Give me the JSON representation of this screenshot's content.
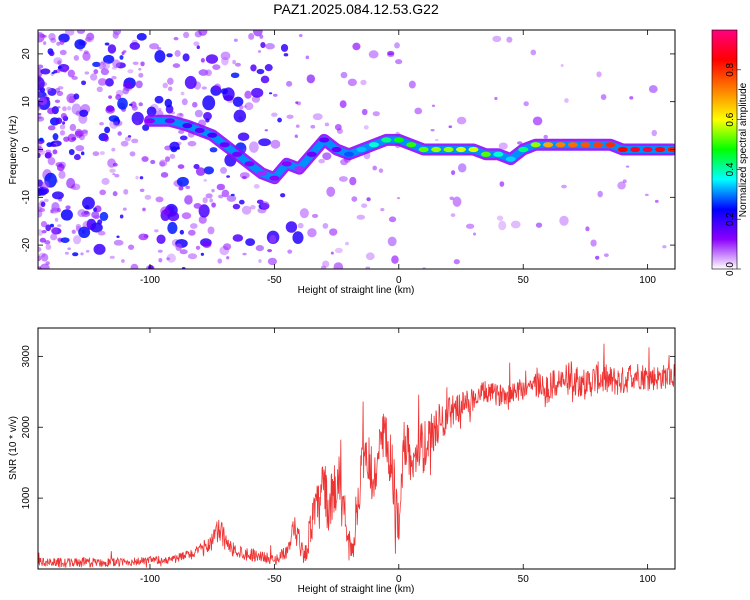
{
  "title": "PAZ1.2025.084.12.53.G22",
  "chart_data": [
    {
      "type": "heatmap",
      "xlabel": "Height of straight line (km)",
      "ylabel": "Frequency (Hz)",
      "xlim": [
        -145,
        111
      ],
      "ylim": [
        -25,
        25
      ],
      "xticks": [
        -100,
        -50,
        0,
        50,
        100
      ],
      "yticks": [
        -20,
        -10,
        0,
        10,
        20
      ],
      "colorbar": {
        "label": "Normalized spectral amplitude",
        "range": [
          0,
          0.96
        ],
        "ticks": [
          0.0,
          0.2,
          0.4,
          0.6,
          0.8
        ],
        "colormap": [
          "#ffffff",
          "#8b00ff",
          "#0000ff",
          "#00ffff",
          "#00ff00",
          "#ffff00",
          "#ff8000",
          "#ff0000",
          "#ff0080"
        ]
      },
      "ridge": {
        "x": [
          -100,
          -92,
          -85,
          -80,
          -75,
          -70,
          -65,
          -60,
          -55,
          -50,
          -45,
          -40,
          -35,
          -30,
          -25,
          -20,
          -15,
          -10,
          -5,
          0,
          5,
          10,
          15,
          20,
          25,
          30,
          35,
          40,
          45,
          50,
          55,
          60,
          65,
          70,
          75,
          80,
          85,
          90,
          95,
          100,
          105,
          110
        ],
        "y": [
          6,
          6,
          5,
          4,
          3,
          1,
          -1,
          -3,
          -5,
          -6,
          -3,
          -4,
          -1,
          2,
          0,
          -1,
          0,
          1,
          2,
          2,
          1,
          0,
          0,
          0,
          0,
          0,
          -1,
          -1,
          -2,
          0,
          1,
          1,
          1,
          1,
          1,
          1,
          1,
          0,
          0,
          0,
          0,
          0
        ],
        "amplitude": [
          0.12,
          0.14,
          0.18,
          0.16,
          0.18,
          0.15,
          0.14,
          0.13,
          0.1,
          0.12,
          0.12,
          0.1,
          0.15,
          0.16,
          0.15,
          0.28,
          0.33,
          0.38,
          0.42,
          0.48,
          0.5,
          0.52,
          0.55,
          0.55,
          0.58,
          0.58,
          0.52,
          0.38,
          0.34,
          0.42,
          0.55,
          0.68,
          0.72,
          0.74,
          0.76,
          0.78,
          0.8,
          0.84,
          0.88,
          0.9,
          0.86,
          0.82
        ]
      }
    },
    {
      "type": "line",
      "xlabel": "Height of straight line (km)",
      "ylabel": "SNR (10 * v/v)",
      "xlim": [
        -145,
        111
      ],
      "ylim": [
        0,
        3400
      ],
      "xticks": [
        -100,
        -50,
        0,
        50,
        100
      ],
      "yticks": [
        1000,
        2000,
        3000
      ],
      "color": "#ee3333",
      "series": [
        {
          "x": [
            -145,
            -130,
            -110,
            -90,
            -80,
            -75,
            -72,
            -68,
            -62,
            -55,
            -50,
            -45,
            -42,
            -40,
            -38,
            -35,
            -32,
            -30,
            -28,
            -25,
            -22,
            -20,
            -18,
            -15,
            -12,
            -10,
            -8,
            -5,
            -3,
            0,
            2,
            5,
            10,
            15,
            20,
            25,
            30,
            35,
            40,
            45,
            50,
            55,
            60,
            65,
            70,
            75,
            80,
            85,
            90,
            95,
            100,
            105,
            111
          ],
          "y": [
            100,
            90,
            95,
            140,
            250,
            400,
            550,
            300,
            220,
            180,
            120,
            250,
            500,
            400,
            150,
            650,
            900,
            1200,
            800,
            1300,
            900,
            400,
            300,
            1400,
            1500,
            1200,
            1700,
            1800,
            1400,
            650,
            1800,
            1600,
            1700,
            2000,
            2200,
            2300,
            2400,
            2500,
            2450,
            2500,
            2550,
            2600,
            2550,
            2650,
            2700,
            2600,
            2700,
            2650,
            2650,
            2750,
            2700,
            2700,
            2750
          ],
          "noise": [
            60,
            70,
            60,
            60,
            90,
            150,
            200,
            110,
            100,
            80,
            70,
            100,
            260,
            180,
            120,
            300,
            400,
            450,
            350,
            500,
            400,
            200,
            150,
            350,
            400,
            350,
            450,
            450,
            500,
            300,
            350,
            380,
            380,
            300,
            250,
            200,
            170,
            160,
            150,
            160,
            170,
            200,
            220,
            220,
            240,
            220,
            230,
            220,
            210,
            200,
            190,
            180,
            180
          ]
        }
      ]
    }
  ]
}
